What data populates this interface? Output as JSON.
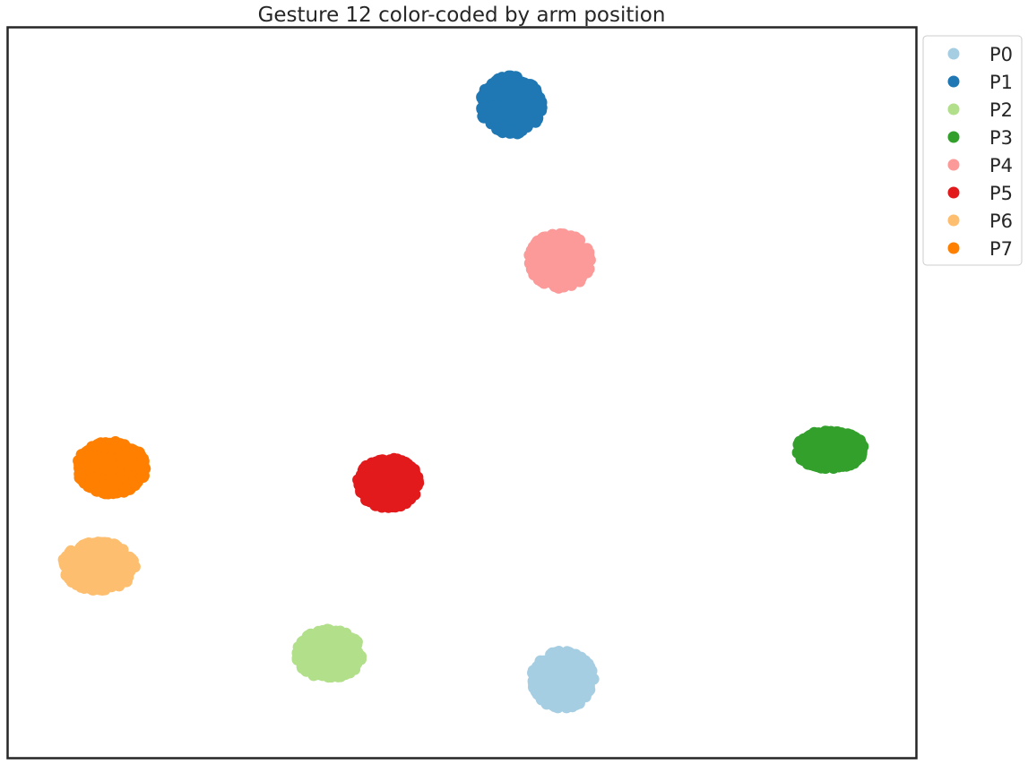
{
  "chart_data": {
    "type": "scatter",
    "title": "Gesture 12 color-coded by arm position",
    "xlabel": "",
    "ylabel": "",
    "xlim": [
      0,
      100
    ],
    "ylim": [
      0,
      100
    ],
    "axes_ticks_visible": false,
    "grid": false,
    "legend_position": "outside-top-right",
    "marker": "circle",
    "series": [
      {
        "name": "P0",
        "color": "#a6cee3",
        "center": [
          61.1,
          10.6
        ],
        "spread": [
          3.4,
          3.9
        ]
      },
      {
        "name": "P1",
        "color": "#1f78b4",
        "center": [
          55.4,
          89.5
        ],
        "spread": [
          3.4,
          4.0
        ]
      },
      {
        "name": "P2",
        "color": "#b2df8a",
        "center": [
          35.3,
          14.1
        ],
        "spread": [
          3.6,
          3.4
        ]
      },
      {
        "name": "P3",
        "color": "#33a02c",
        "center": [
          90.6,
          42.2
        ],
        "spread": [
          3.8,
          2.6
        ]
      },
      {
        "name": "P4",
        "color": "#fb9a99",
        "center": [
          60.8,
          68.2
        ],
        "spread": [
          3.4,
          3.8
        ]
      },
      {
        "name": "P5",
        "color": "#e31a1c",
        "center": [
          41.9,
          37.6
        ],
        "spread": [
          3.4,
          3.4
        ]
      },
      {
        "name": "P6",
        "color": "#fdbf6f",
        "center": [
          9.9,
          26.2
        ],
        "spread": [
          4.0,
          3.3
        ]
      },
      {
        "name": "P7",
        "color": "#ff7f00",
        "center": [
          11.3,
          39.7
        ],
        "spread": [
          3.8,
          3.6
        ]
      }
    ],
    "points_per_series": 400
  }
}
